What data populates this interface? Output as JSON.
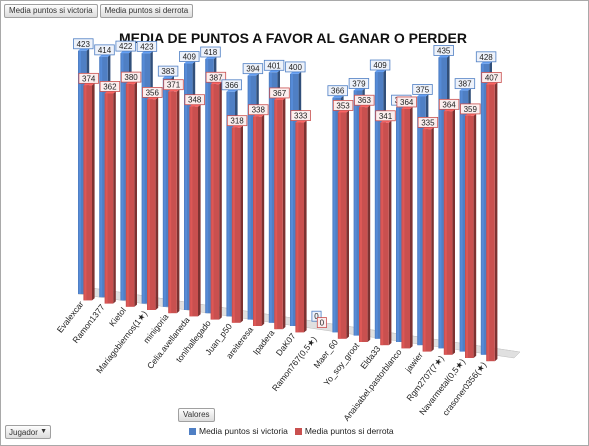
{
  "filters": {
    "victoria_label": "Media puntos si victoria",
    "derrota_label": "Media puntos si derrota"
  },
  "values_field_label": "Valores",
  "axis_field": {
    "label": "Jugador"
  },
  "colors": {
    "victoria": "#4f7fc4",
    "derrota": "#c9504f"
  },
  "chart_data": {
    "type": "bar",
    "title": "MEDIA DE PUNTOS A FAVOR AL GANAR O PERDER",
    "xlabel": "",
    "ylabel": "",
    "ylim": [
      0,
      450
    ],
    "grid": false,
    "legend_position": "bottom",
    "categories": [
      "Evalexcar",
      "Ramon1377",
      "Kietol",
      "Mariagobiernos(1★)",
      "minigoria",
      "Celia.avellaneda",
      "tonihallegado",
      "Juan_p50",
      "areiteresa",
      "Ipadera",
      "DaK07",
      "Ramon767(0,5★)",
      "Maer_60",
      "Yo_soy_groot",
      "Elda33",
      "Anaisabel.pastorblanco",
      "jawier",
      "Rgm2707(7★)",
      "Navarmetal(0,5★)",
      "crasoner0356(★)"
    ],
    "series": [
      {
        "name": "Media puntos si victoria",
        "values": [
          423,
          414,
          422,
          423,
          383,
          409,
          418,
          366,
          394,
          401,
          400,
          0,
          366,
          379,
          409,
          357,
          375,
          435,
          387,
          428
        ]
      },
      {
        "name": "Media puntos si derrota",
        "values": [
          374,
          362,
          380,
          356,
          371,
          348,
          387,
          318,
          338,
          367,
          333,
          0,
          353,
          363,
          341,
          364,
          335,
          364,
          359,
          407
        ]
      }
    ]
  }
}
